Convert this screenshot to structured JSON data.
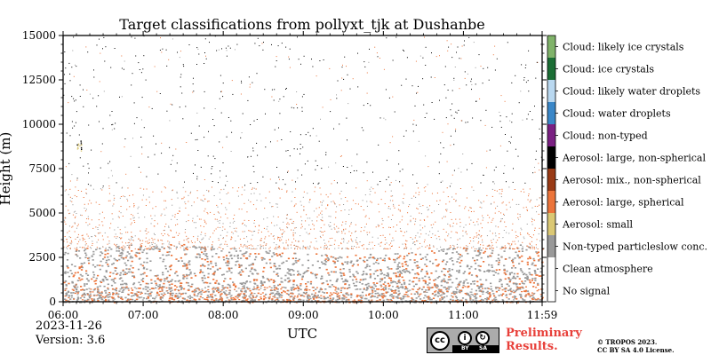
{
  "chart_data": {
    "type": "heatmap",
    "title": "Target classifications from pollyxt_tjk at Dushanbe",
    "xlabel": "UTC",
    "ylabel": "Height (m)",
    "xlim": [
      "06:00",
      "11:59"
    ],
    "ylim": [
      0,
      15000
    ],
    "x_ticks": [
      "06:00",
      "07:00",
      "08:00",
      "09:00",
      "10:00",
      "11:00",
      "11:59"
    ],
    "y_ticks": [
      0,
      2500,
      5000,
      7500,
      10000,
      12500,
      15000
    ],
    "classes": [
      {
        "name": "No signal",
        "color": "#ffffff"
      },
      {
        "name": "Clean atmosphere",
        "color": "#ffffff"
      },
      {
        "name": "Non-typed particleslow conc.",
        "color": "#999999"
      },
      {
        "name": "Aerosol: small",
        "color": "#dbc874"
      },
      {
        "name": "Aerosol: large, spherical",
        "color": "#ec743a"
      },
      {
        "name": "Aerosol: mix., non-spherical",
        "color": "#993a15"
      },
      {
        "name": "Aerosol: large, non-spherical",
        "color": "#000000"
      },
      {
        "name": "Cloud: non-typed",
        "color": "#7a2082"
      },
      {
        "name": "Cloud: water droplets",
        "color": "#3a87c8"
      },
      {
        "name": "Cloud: likely water droplets",
        "color": "#b9d8f0"
      },
      {
        "name": "Cloud: ice crystals",
        "color": "#1b6e35"
      },
      {
        "name": "Cloud: likely ice crystals",
        "color": "#80b36a"
      }
    ],
    "profile_layers": [
      {
        "height_range": [
          0,
          3000
        ],
        "dominant": [
          "Non-typed particleslow conc.",
          "Aerosol: large, spherical"
        ]
      },
      {
        "height_range": [
          3000,
          6500
        ],
        "dominant": [
          "Aerosol: large, spherical",
          "Non-typed particleslow conc."
        ]
      },
      {
        "height_range": [
          6500,
          15000
        ],
        "dominant": [
          "Aerosol: large, non-spherical"
        ]
      }
    ]
  },
  "footer": {
    "date": "2023-11-26",
    "version": "Version: 3.6",
    "badge_cc": "cc",
    "badge_by": "BY",
    "badge_sa": "SA",
    "preliminary_line1": "Preliminary",
    "preliminary_line2": "Results.",
    "copyright": "© TROPOS 2023.",
    "license": "CC BY SA 4.0 License."
  }
}
